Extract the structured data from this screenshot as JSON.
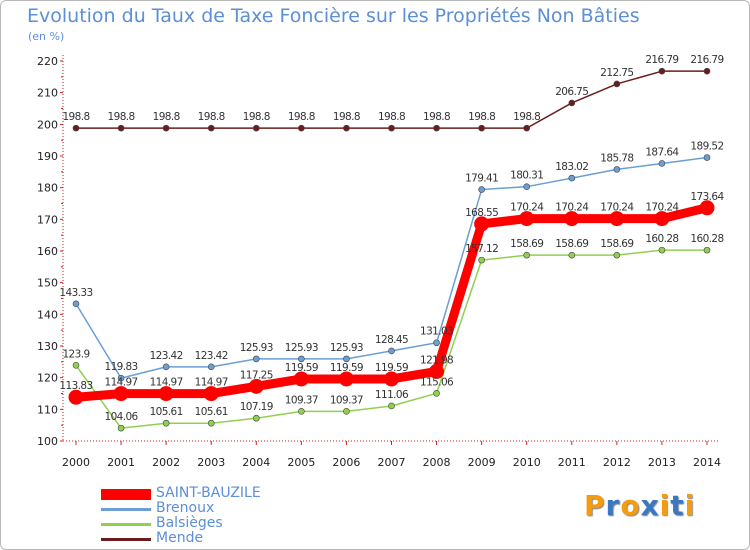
{
  "chart_data": {
    "type": "line",
    "title": "Evolution du Taux de Taxe Foncière sur les Propriétés Non Bâties",
    "ylabel": "(en %)",
    "xlabel": "",
    "ylim": [
      100,
      220
    ],
    "yticks": [
      100,
      110,
      120,
      130,
      140,
      150,
      160,
      170,
      180,
      190,
      200,
      210,
      220
    ],
    "categories": [
      "2000",
      "2001",
      "2002",
      "2003",
      "2004",
      "2005",
      "2006",
      "2007",
      "2008",
      "2009",
      "2010",
      "2011",
      "2012",
      "2013",
      "2014"
    ],
    "series": [
      {
        "name": "Mende",
        "color": "#6b1d1d",
        "values": [
          198.8,
          198.8,
          198.8,
          198.8,
          198.8,
          198.8,
          198.8,
          198.8,
          198.8,
          198.8,
          198.8,
          206.75,
          212.75,
          216.79,
          216.79
        ],
        "labels": [
          "198.8",
          "198.8",
          "198.8",
          "198.8",
          "198.8",
          "198.8",
          "198.8",
          "198.8",
          "198.8",
          "198.8",
          "198.8",
          "206.75",
          "212.75",
          "216.79",
          "216.79"
        ]
      },
      {
        "name": "Brenoux",
        "color": "#6b9fd4",
        "values": [
          143.33,
          119.83,
          123.42,
          123.42,
          125.93,
          125.93,
          125.93,
          128.45,
          131.03,
          179.41,
          180.31,
          183.02,
          185.78,
          187.64,
          189.52
        ],
        "labels": [
          "143.33",
          "119.83",
          "123.42",
          "123.42",
          "125.93",
          "125.93",
          "125.93",
          "128.45",
          "131.03",
          "179.41",
          "180.31",
          "183.02",
          "185.78",
          "187.64",
          "189.52"
        ]
      },
      {
        "name": "Balsièges",
        "color": "#90d050",
        "values": [
          123.9,
          104.06,
          105.61,
          105.61,
          107.19,
          109.37,
          109.37,
          111.06,
          115.06,
          157.12,
          158.69,
          158.69,
          158.69,
          160.28,
          160.28
        ],
        "labels": [
          "123.9",
          "104.06",
          "105.61",
          "105.61",
          "107.19",
          "109.37",
          "109.37",
          "111.06",
          "115.06",
          "157.12",
          "158.69",
          "158.69",
          "158.69",
          "160.28",
          "160.28"
        ]
      },
      {
        "name": "SAINT-BAUZILE",
        "color": "#ff0000",
        "values": [
          113.83,
          114.97,
          114.97,
          114.97,
          117.25,
          119.59,
          119.59,
          119.59,
          121.98,
          168.55,
          170.24,
          170.24,
          170.24,
          170.24,
          173.64
        ],
        "labels": [
          "113.83",
          "114.97",
          "114.97",
          "114.97",
          "117.25",
          "119.59",
          "119.59",
          "119.59",
          "121.98",
          "168.55",
          "170.24",
          "170.24",
          "170.24",
          "170.24",
          "173.64"
        ]
      }
    ],
    "legend": [
      "SAINT-BAUZILE",
      "Brenoux",
      "Balsièges",
      "Mende"
    ],
    "legend_position": "bottom-left",
    "grid": false
  },
  "logo": {
    "letters": [
      "P",
      "r",
      "o",
      "x",
      "i",
      "t",
      "i"
    ],
    "colors": [
      "#f39c12",
      "#3a78c2",
      "#f39c12",
      "#3a78c2",
      "#f39c12",
      "#3a78c2",
      "#f39c12"
    ]
  }
}
